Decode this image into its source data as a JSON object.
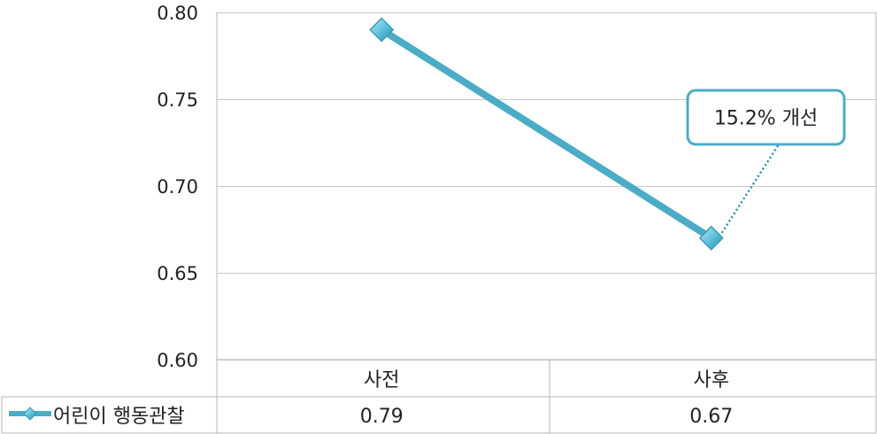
{
  "chart_data": {
    "type": "line",
    "categories": [
      "사전",
      "사후"
    ],
    "series": [
      {
        "name": "어린이 행동관찰",
        "values": [
          0.79,
          0.67
        ],
        "value_labels": [
          "0.79",
          "0.67"
        ],
        "color": "#4bacc6"
      }
    ],
    "ylim": [
      0.6,
      0.8
    ],
    "yticks": [
      0.6,
      0.65,
      0.7,
      0.75,
      0.8
    ],
    "ytick_labels": [
      "0.60",
      "0.65",
      "0.70",
      "0.75",
      "0.80"
    ],
    "grid": true,
    "legend": "data-table",
    "annotations": [
      {
        "text": "15.2% 개선",
        "points_to_category": "사후",
        "border_color": "#4bacc6"
      }
    ],
    "title": "",
    "xlabel": "",
    "ylabel": ""
  }
}
